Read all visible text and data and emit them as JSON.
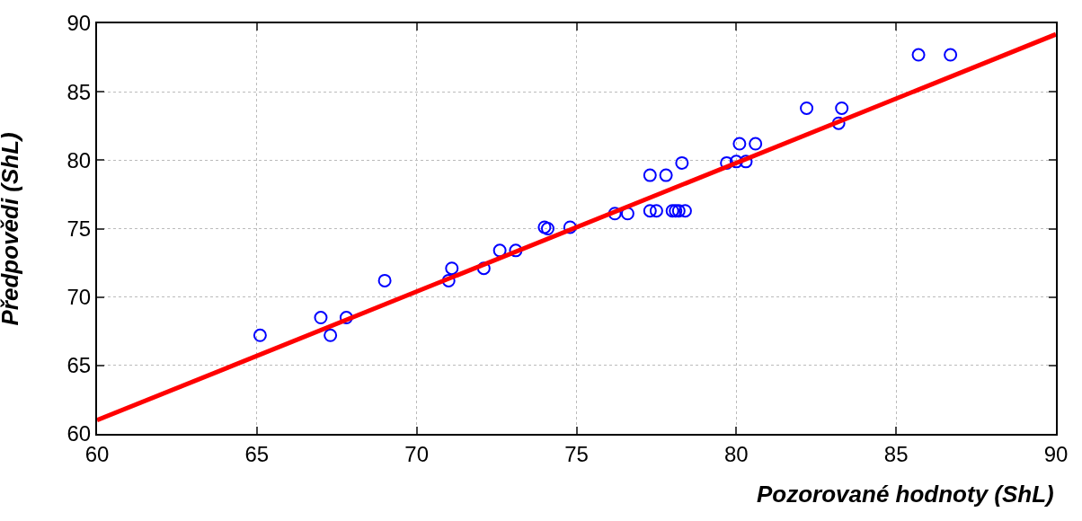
{
  "chart_data": {
    "type": "scatter",
    "xlabel": "Pozorované hodnoty (ShL)",
    "ylabel": "Předpovědi (ShL)",
    "xlim": [
      60,
      90
    ],
    "ylim": [
      60,
      90
    ],
    "xticks": [
      60,
      65,
      70,
      75,
      80,
      85,
      90
    ],
    "yticks": [
      60,
      65,
      70,
      75,
      80,
      85,
      90
    ],
    "grid": true,
    "legend": false,
    "series": [
      {
        "marker": "circle",
        "color": "#0000ff",
        "x": [
          65.1,
          67.0,
          67.3,
          67.8,
          69.0,
          71.0,
          71.1,
          72.1,
          72.6,
          73.1,
          74.0,
          74.1,
          74.8,
          76.2,
          76.6,
          77.3,
          77.3,
          77.5,
          77.8,
          78.0,
          78.1,
          78.2,
          78.4,
          78.3,
          79.7,
          80.0,
          80.1,
          80.3,
          80.6,
          82.2,
          83.2,
          83.3,
          85.7,
          86.7
        ],
        "values": [
          67.2,
          68.5,
          67.2,
          68.5,
          71.2,
          71.2,
          72.1,
          72.1,
          73.4,
          73.4,
          75.1,
          75.0,
          75.1,
          76.1,
          76.1,
          78.9,
          76.3,
          76.3,
          78.9,
          76.3,
          76.3,
          76.3,
          76.3,
          79.8,
          79.8,
          79.9,
          81.2,
          79.9,
          81.2,
          83.8,
          82.7,
          83.8,
          87.7,
          87.7
        ]
      },
      {
        "type": "line",
        "marker": "none",
        "color": "#ff0000",
        "x": [
          60,
          90
        ],
        "values": [
          61.0,
          89.2
        ]
      }
    ]
  }
}
